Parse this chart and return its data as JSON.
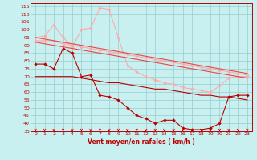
{
  "x": [
    0,
    1,
    2,
    3,
    4,
    5,
    6,
    7,
    8,
    9,
    10,
    11,
    12,
    13,
    14,
    15,
    16,
    17,
    18,
    19,
    20,
    21,
    22,
    23
  ],
  "line_dark1": [
    78,
    78,
    75,
    88,
    85,
    70,
    71,
    58,
    57,
    55,
    50,
    45,
    43,
    40,
    42,
    42,
    37,
    36,
    36,
    37,
    40,
    57,
    58,
    58
  ],
  "line_dark2": [
    70,
    70,
    70,
    70,
    70,
    69,
    68,
    67,
    66,
    66,
    65,
    64,
    63,
    62,
    62,
    61,
    60,
    59,
    58,
    58,
    57,
    57,
    56,
    55
  ],
  "line_mid1": [
    95,
    94,
    93,
    92,
    91,
    90,
    89,
    88,
    87,
    86,
    85,
    84,
    83,
    82,
    81,
    80,
    79,
    78,
    77,
    76,
    75,
    74,
    73,
    72
  ],
  "line_mid2": [
    92,
    91,
    90,
    89,
    88,
    87,
    86,
    85,
    84,
    83,
    82,
    81,
    80,
    79,
    78,
    77,
    76,
    75,
    74,
    73,
    72,
    71,
    70,
    69
  ],
  "line_light1": [
    95,
    96,
    103,
    95,
    89,
    100,
    101,
    114,
    113,
    95,
    77,
    73,
    70,
    68,
    66,
    65,
    63,
    62,
    61,
    60,
    64,
    69,
    70,
    70
  ],
  "line_light2": [
    93,
    93,
    93,
    91,
    90,
    89,
    88,
    87,
    86,
    85,
    84,
    83,
    82,
    81,
    80,
    79,
    78,
    77,
    76,
    75,
    74,
    73,
    72,
    71
  ],
  "xlabel": "Vent moyen/en rafales ( km/h )",
  "ylim": [
    35,
    117
  ],
  "xlim": [
    -0.5,
    23.5
  ],
  "yticks": [
    35,
    40,
    45,
    50,
    55,
    60,
    65,
    70,
    75,
    80,
    85,
    90,
    95,
    100,
    105,
    110,
    115
  ],
  "xticks": [
    0,
    1,
    2,
    3,
    4,
    5,
    6,
    7,
    8,
    9,
    10,
    11,
    12,
    13,
    14,
    15,
    16,
    17,
    18,
    19,
    20,
    21,
    22,
    23
  ],
  "bg_color": "#c8f0f0",
  "grid_color": "#99cccc",
  "dark_red": "#bb0000",
  "mid_red": "#ee4444",
  "light_red": "#ffaaaa"
}
